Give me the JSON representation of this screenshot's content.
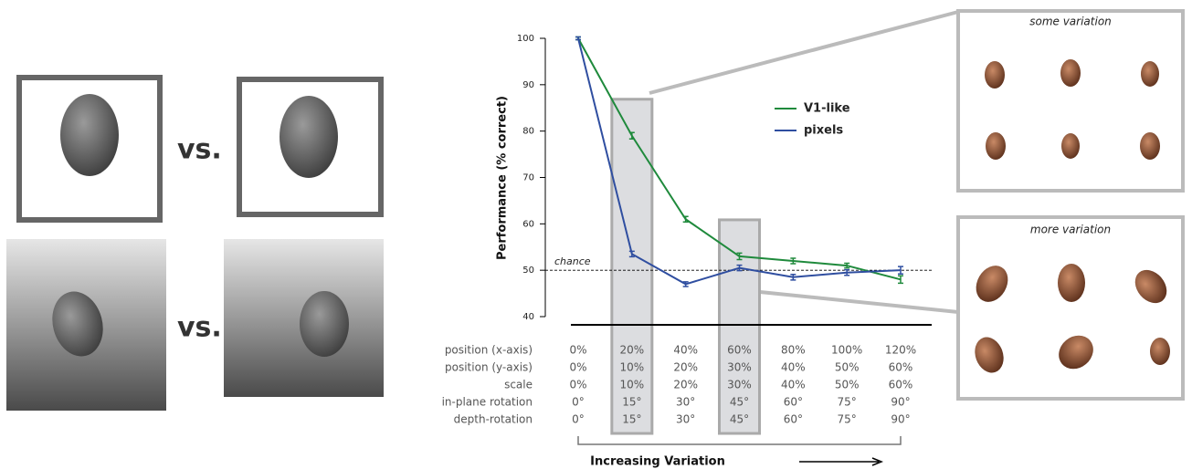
{
  "left_panel": {
    "comparisons": [
      "vs.",
      "vs."
    ]
  },
  "insets": [
    "some variation",
    "more variation"
  ],
  "chart_data": {
    "type": "line",
    "y_label": "Performance (% correct)",
    "x_label": "Increasing Variation",
    "chance_label": "chance",
    "chance_level": 50,
    "ylim": [
      40,
      100
    ],
    "yticks": [
      40,
      50,
      60,
      70,
      80,
      90,
      100
    ],
    "x_label_rows": [
      {
        "name": "position (x-axis)",
        "labels": [
          "0%",
          "20%",
          "40%",
          "60%",
          "80%",
          "100%",
          "120%"
        ]
      },
      {
        "name": "position (y-axis)",
        "labels": [
          "0%",
          "10%",
          "20%",
          "30%",
          "40%",
          "50%",
          "60%"
        ]
      },
      {
        "name": "scale",
        "labels": [
          "0%",
          "10%",
          "20%",
          "30%",
          "40%",
          "50%",
          "60%"
        ]
      },
      {
        "name": "in-plane rotation",
        "labels": [
          "0°",
          "15°",
          "30°",
          "45°",
          "60°",
          "75°",
          "90°"
        ]
      },
      {
        "name": "depth-rotation",
        "labels": [
          "0°",
          "15°",
          "30°",
          "45°",
          "60°",
          "75°",
          "90°"
        ]
      }
    ],
    "highlight_indices": [
      1,
      3
    ],
    "series": [
      {
        "name": "V1-like",
        "color": "#1f8a3c",
        "values": [
          100,
          79,
          61,
          53,
          52,
          51,
          48
        ],
        "errors": [
          0.3,
          0.7,
          0.6,
          0.7,
          0.6,
          0.5,
          0.8
        ]
      },
      {
        "name": "pixels",
        "color": "#2f4ea0",
        "values": [
          100,
          53.5,
          47,
          50.5,
          48.5,
          49.5,
          50
        ],
        "errors": [
          0.3,
          0.6,
          0.5,
          0.6,
          0.6,
          0.6,
          0.8
        ]
      }
    ]
  }
}
